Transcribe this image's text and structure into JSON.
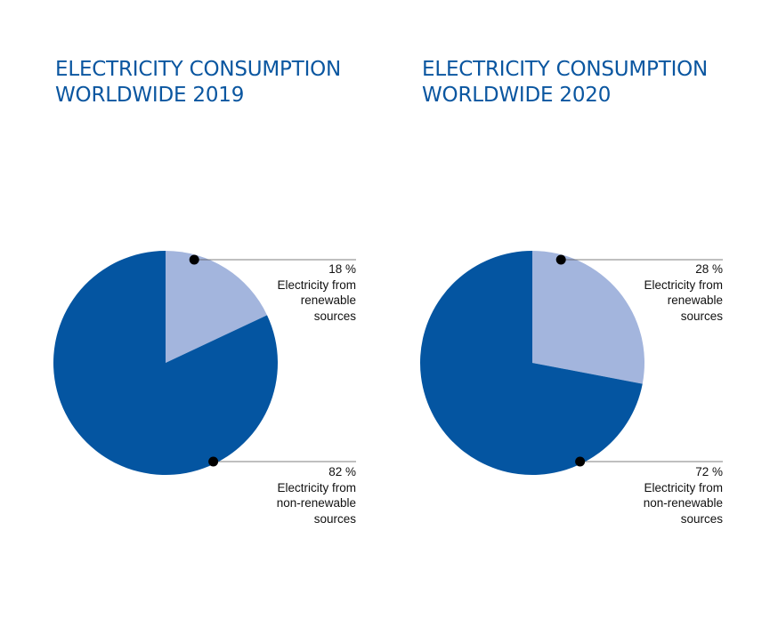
{
  "chart_data": [
    {
      "type": "pie",
      "title_lines": [
        "ELECTRICITY CONSUMPTION",
        "WORLDWIDE 2019"
      ],
      "slices": [
        {
          "label_lines": [
            "Electricity from",
            "renewable",
            "sources"
          ],
          "value": 18,
          "value_label": "18 %",
          "color": "#a3b5dd"
        },
        {
          "label_lines": [
            "Electricity from",
            "non-renewable",
            "sources"
          ],
          "value": 82,
          "value_label": "82 %",
          "color": "#0455a1"
        }
      ]
    },
    {
      "type": "pie",
      "title_lines": [
        "ELECTRICITY CONSUMPTION",
        "WORLDWIDE 2020"
      ],
      "slices": [
        {
          "label_lines": [
            "Electricity from",
            "renewable",
            "sources"
          ],
          "value": 28,
          "value_label": "28 %",
          "color": "#a3b5dd"
        },
        {
          "label_lines": [
            "Electricity from",
            "non-renewable",
            "sources"
          ],
          "value": 72,
          "value_label": "72 %",
          "color": "#0455a1"
        }
      ]
    }
  ],
  "colors": {
    "title": "#0a56a0",
    "leader_line": "#555555",
    "leader_dot": "#000000"
  }
}
